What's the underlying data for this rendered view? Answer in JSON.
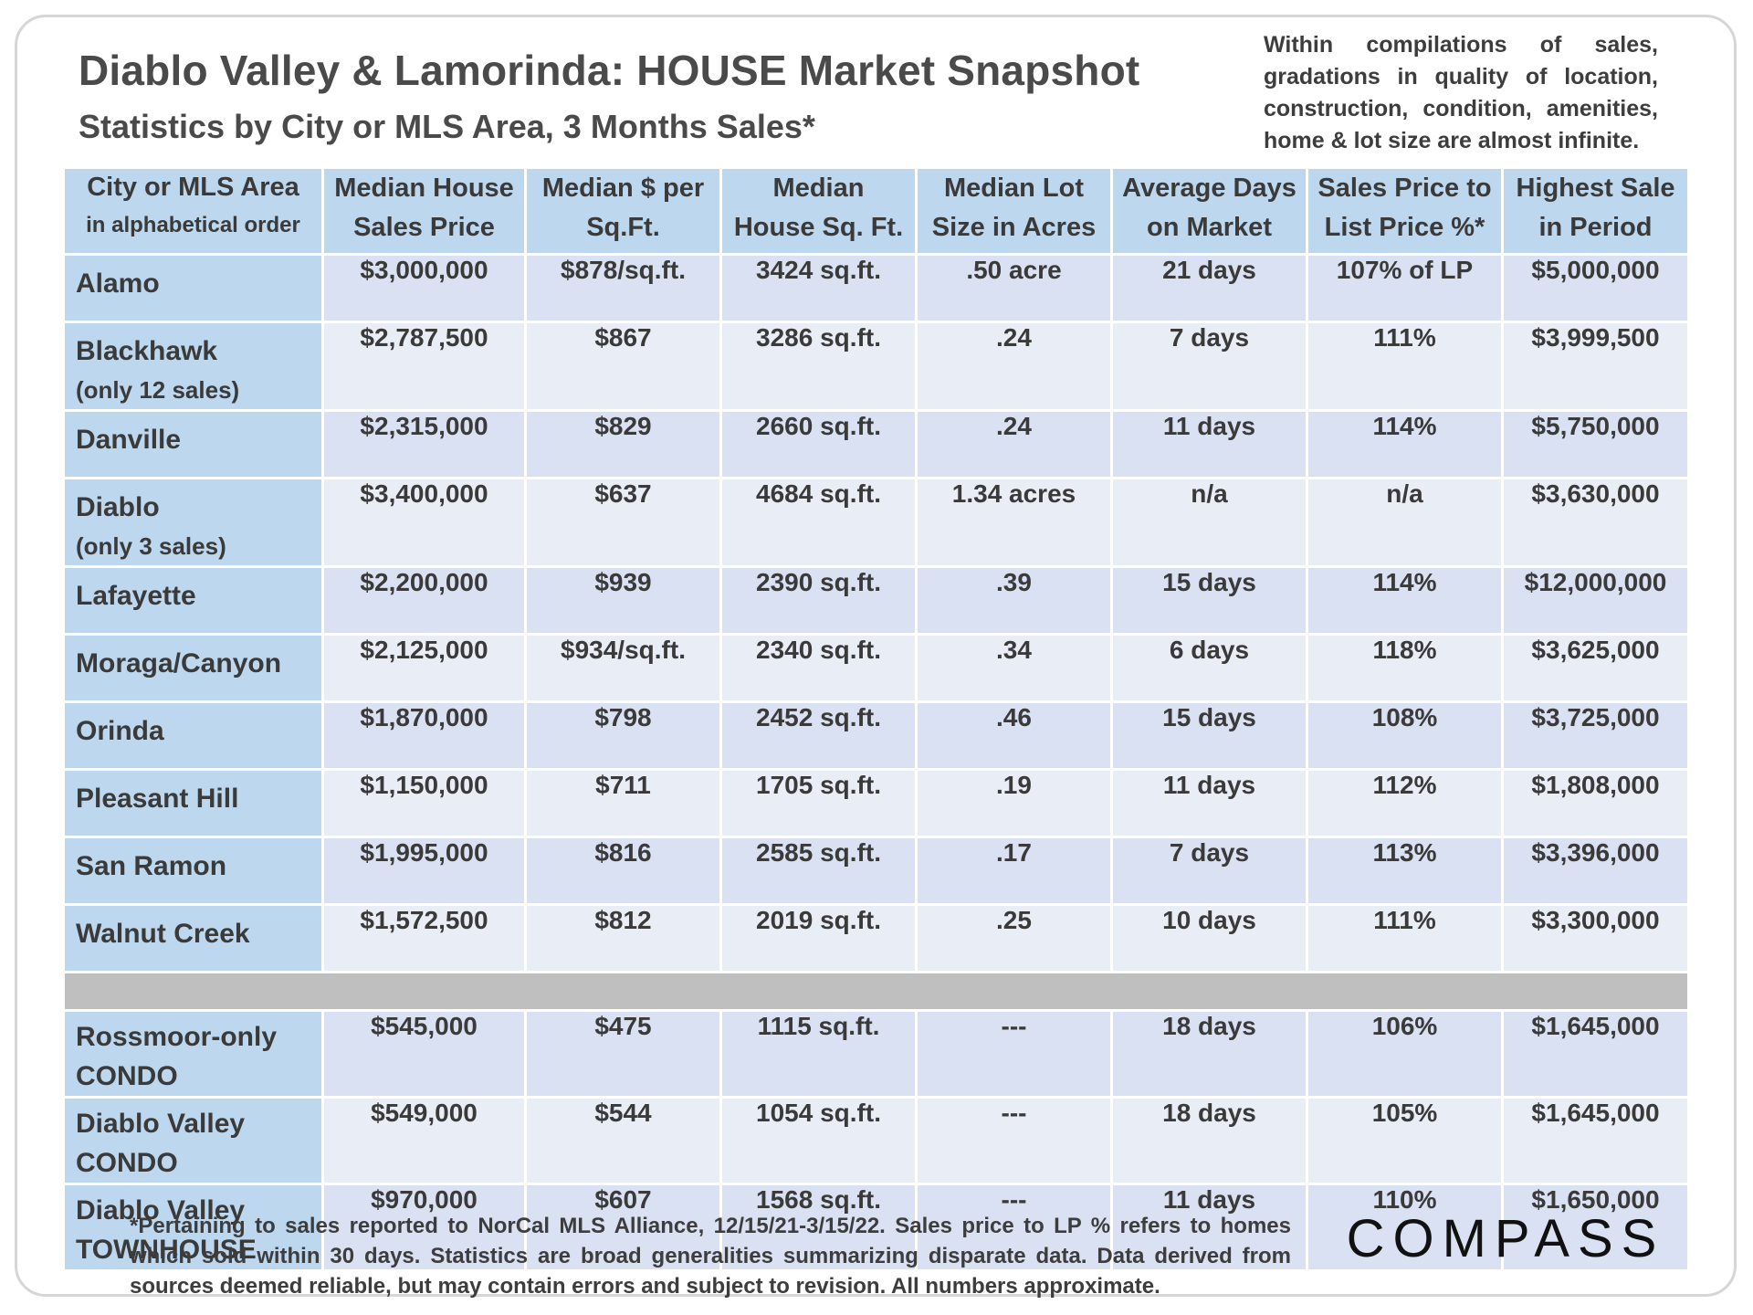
{
  "header": {
    "title": "Diablo Valley & Lamorinda: HOUSE Market Snapshot",
    "subtitle": "Statistics by City or MLS Area, 3 Months Sales*",
    "note": "Within compilations of sales, gradations in quality of location, construction, condition, amenities, home & lot size are almost infinite."
  },
  "table": {
    "columns": [
      {
        "line1": "City or MLS Area",
        "line2": "in alphabetical order"
      },
      {
        "line1": "Median House",
        "line2": "Sales Price"
      },
      {
        "line1": "Median $ per",
        "line2": "Sq.Ft."
      },
      {
        "line1": "Median",
        "line2": "House Sq. Ft."
      },
      {
        "line1": "Median Lot",
        "line2": "Size in Acres"
      },
      {
        "line1": "Average Days",
        "line2": "on Market"
      },
      {
        "line1": "Sales Price to",
        "line2": "List Price %*"
      },
      {
        "line1": "Highest Sale",
        "line2": "in Period"
      }
    ],
    "rows": [
      {
        "city": "Alamo",
        "note": "",
        "price": "$3,000,000",
        "per_sqft": "$878/sq.ft.",
        "sqft": "3424 sq.ft.",
        "lot": ".50 acre",
        "days": "21 days",
        "sp_lp": "107% of LP",
        "highest": "$5,000,000"
      },
      {
        "city": "Blackhawk",
        "note": "(only 12 sales)",
        "price": "$2,787,500",
        "per_sqft": "$867",
        "sqft": "3286 sq.ft.",
        "lot": ".24",
        "days": "7 days",
        "sp_lp": "111%",
        "highest": "$3,999,500"
      },
      {
        "city": "Danville",
        "note": "",
        "price": "$2,315,000",
        "per_sqft": "$829",
        "sqft": "2660 sq.ft.",
        "lot": ".24",
        "days": "11 days",
        "sp_lp": "114%",
        "highest": "$5,750,000"
      },
      {
        "city": "Diablo",
        "note": "(only 3 sales)",
        "price": "$3,400,000",
        "per_sqft": "$637",
        "sqft": "4684 sq.ft.",
        "lot": "1.34 acres",
        "days": "n/a",
        "sp_lp": "n/a",
        "highest": "$3,630,000"
      },
      {
        "city": "Lafayette",
        "note": "",
        "price": "$2,200,000",
        "per_sqft": "$939",
        "sqft": "2390 sq.ft.",
        "lot": ".39",
        "days": "15 days",
        "sp_lp": "114%",
        "highest": "$12,000,000"
      },
      {
        "city": "Moraga/Canyon",
        "note": "",
        "price": "$2,125,000",
        "per_sqft": "$934/sq.ft.",
        "sqft": "2340 sq.ft.",
        "lot": ".34",
        "days": "6 days",
        "sp_lp": "118%",
        "highest": "$3,625,000"
      },
      {
        "city": "Orinda",
        "note": "",
        "price": "$1,870,000",
        "per_sqft": "$798",
        "sqft": "2452 sq.ft.",
        "lot": ".46",
        "days": "15 days",
        "sp_lp": "108%",
        "highest": "$3,725,000"
      },
      {
        "city": "Pleasant Hill",
        "note": "",
        "price": "$1,150,000",
        "per_sqft": "$711",
        "sqft": "1705 sq.ft.",
        "lot": ".19",
        "days": "11 days",
        "sp_lp": "112%",
        "highest": "$1,808,000"
      },
      {
        "city": "San Ramon",
        "note": "",
        "price": "$1,995,000",
        "per_sqft": "$816",
        "sqft": "2585 sq.ft.",
        "lot": ".17",
        "days": "7 days",
        "sp_lp": "113%",
        "highest": "$3,396,000"
      },
      {
        "city": "Walnut Creek",
        "note": "",
        "price": "$1,572,500",
        "per_sqft": "$812",
        "sqft": "2019 sq.ft.",
        "lot": ".25",
        "days": "10 days",
        "sp_lp": "111%",
        "highest": "$3,300,000"
      }
    ],
    "condo_rows": [
      {
        "line1": "Rossmoor-only",
        "line2": "CONDO",
        "price": "$545,000",
        "per_sqft": "$475",
        "sqft": "1115 sq.ft.",
        "lot": "---",
        "days": "18 days",
        "sp_lp": "106%",
        "highest": "$1,645,000"
      },
      {
        "line1": "Diablo Valley",
        "line2": "CONDO",
        "price": "$549,000",
        "per_sqft": "$544",
        "sqft": "1054 sq.ft.",
        "lot": "---",
        "days": "18 days",
        "sp_lp": "105%",
        "highest": "$1,645,000"
      },
      {
        "line1": "Diablo Valley",
        "line2": "TOWNHOUSE",
        "price": "$970,000",
        "per_sqft": "$607",
        "sqft": "1568 sq.ft.",
        "lot": "---",
        "days": "11 days",
        "sp_lp": "110%",
        "highest": "$1,650,000"
      }
    ]
  },
  "footer": {
    "note": "*Pertaining to sales reported to NorCal MLS Alliance, 12/15/21-3/15/22. Sales price to LP % refers to homes which sold within 30 days. Statistics are broad generalities summarizing disparate data. Data derived from sources deemed reliable, but may contain errors and subject to revision. All numbers approximate.",
    "logo": "COMPASS"
  }
}
